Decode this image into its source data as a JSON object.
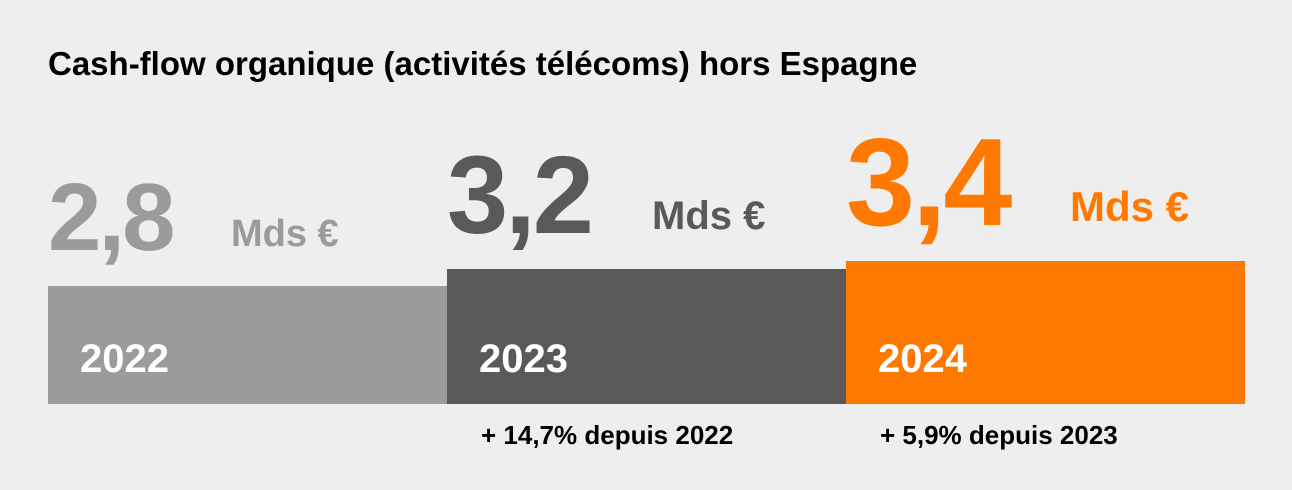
{
  "chart_data": {
    "type": "bar",
    "title": "Cash-flow organique (activités télécoms) hors Espagne",
    "unit": "Mds €",
    "categories": [
      "2022",
      "2023",
      "2024"
    ],
    "values": [
      2.8,
      3.2,
      3.4
    ],
    "value_labels": [
      "2,8",
      "3,2",
      "3,4"
    ],
    "colors": [
      "#9b9b9b",
      "#595959",
      "#ff7900"
    ],
    "growth_labels": [
      "",
      "+ 14,7% depuis 2022",
      "+ 5,9% depuis 2023"
    ],
    "xlabel": "",
    "ylabel": "",
    "grid": false,
    "legend": "none"
  }
}
